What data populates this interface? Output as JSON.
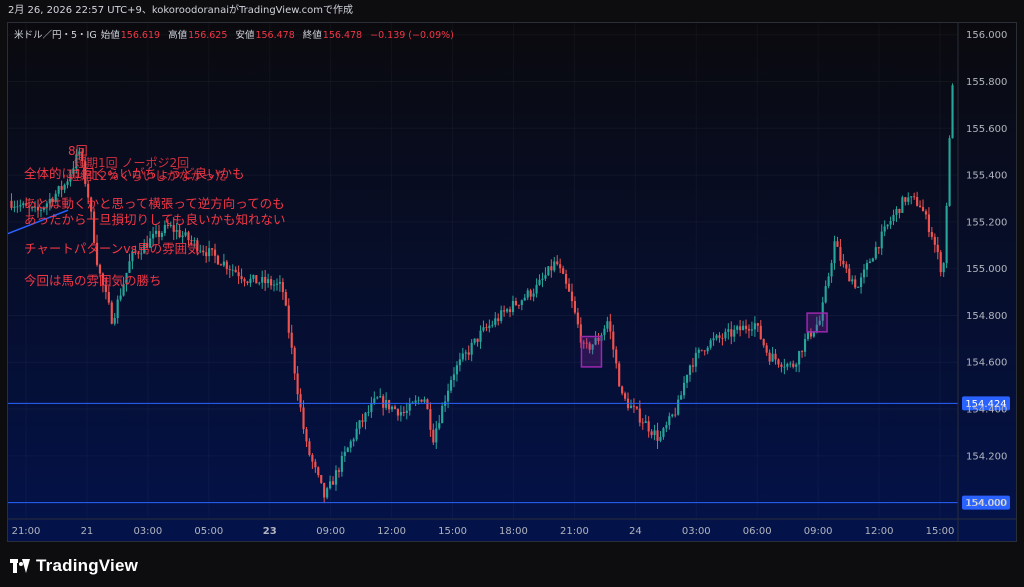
{
  "header": {
    "snapshot_text": "2月 26, 2026 22:57 UTC+9、kokoroodoranaiがTradingView.comで作成"
  },
  "legend": {
    "symbol": "米ドル／円・5・IG",
    "open_label": "始値",
    "open": "156.619",
    "high_label": "高値",
    "high": "156.625",
    "low_label": "安値",
    "low": "156.478",
    "close_label": "終値",
    "close": "156.478",
    "change": "−0.139 (−0.09%)"
  },
  "annotations": {
    "line1": "8回",
    "line2": "全体的に1回くらいがちょうど良いかも",
    "line3": "あとは動くかと思って横張って逆方向ってのも",
    "line4": "あったから一旦損切りしても良いかも知れない",
    "line5": "チャートパターンvs馬の雰囲気",
    "line6": "今回は馬の雰囲気の勝ち",
    "over1": "短期1回 ノーポジ2回",
    "over2": "短縮12%くらいしかなかった"
  },
  "footer": {
    "brand": "TradingView"
  },
  "colors": {
    "up": "#26a69a",
    "down": "#ef5350",
    "hline": "#2962ff",
    "annotation_text": "#f23645",
    "box": "#9c27b0"
  },
  "chart_data": {
    "type": "candlestick",
    "y_ticks": [
      "156.000",
      "155.800",
      "155.600",
      "155.400",
      "155.200",
      "155.000",
      "154.800",
      "154.600",
      "154.400",
      "154.200",
      "154.000"
    ],
    "ylim": [
      153.93,
      156.05
    ],
    "x_ticks": [
      "21:00",
      "21",
      "03:00",
      "05:00",
      "23",
      "09:00",
      "12:00",
      "15:00",
      "18:00",
      "21:00",
      "24",
      "03:00",
      "06:00",
      "09:00",
      "12:00",
      "15:00"
    ],
    "horizontal_lines": [
      {
        "price": 154.424,
        "label": "154.424"
      },
      {
        "price": 154.0,
        "label": "154.000"
      }
    ],
    "price_path": [
      [
        0,
        155.29
      ],
      [
        0.03,
        155.24
      ],
      [
        0.06,
        155.36
      ],
      [
        0.075,
        155.5
      ],
      [
        0.085,
        155.3
      ],
      [
        0.095,
        155.0
      ],
      [
        0.11,
        154.78
      ],
      [
        0.13,
        155.05
      ],
      [
        0.15,
        155.12
      ],
      [
        0.17,
        155.18
      ],
      [
        0.2,
        155.1
      ],
      [
        0.23,
        155.02
      ],
      [
        0.255,
        154.95
      ],
      [
        0.275,
        154.94
      ],
      [
        0.29,
        154.92
      ],
      [
        0.3,
        154.65
      ],
      [
        0.315,
        154.25
      ],
      [
        0.335,
        154.02
      ],
      [
        0.35,
        154.15
      ],
      [
        0.37,
        154.32
      ],
      [
        0.39,
        154.44
      ],
      [
        0.42,
        154.38
      ],
      [
        0.44,
        154.46
      ],
      [
        0.45,
        154.28
      ],
      [
        0.47,
        154.55
      ],
      [
        0.5,
        154.72
      ],
      [
        0.53,
        154.83
      ],
      [
        0.56,
        154.92
      ],
      [
        0.58,
        155.03
      ],
      [
        0.595,
        154.88
      ],
      [
        0.61,
        154.65
      ],
      [
        0.625,
        154.7
      ],
      [
        0.635,
        154.78
      ],
      [
        0.65,
        154.45
      ],
      [
        0.67,
        154.36
      ],
      [
        0.69,
        154.27
      ],
      [
        0.71,
        154.42
      ],
      [
        0.72,
        154.58
      ],
      [
        0.74,
        154.68
      ],
      [
        0.77,
        154.73
      ],
      [
        0.79,
        154.77
      ],
      [
        0.805,
        154.63
      ],
      [
        0.83,
        154.58
      ],
      [
        0.845,
        154.7
      ],
      [
        0.86,
        154.78
      ],
      [
        0.875,
        155.11
      ],
      [
        0.885,
        155.0
      ],
      [
        0.9,
        154.92
      ],
      [
        0.915,
        155.06
      ],
      [
        0.935,
        155.21
      ],
      [
        0.95,
        155.3
      ],
      [
        0.965,
        155.28
      ],
      [
        0.978,
        155.15
      ],
      [
        0.99,
        154.97
      ],
      [
        1.0,
        155.8
      ]
    ]
  }
}
